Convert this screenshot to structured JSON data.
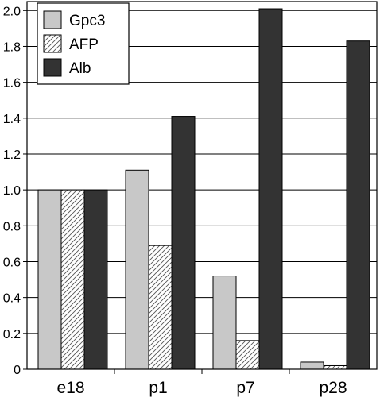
{
  "chart_data": {
    "type": "bar",
    "title": "",
    "xlabel": "",
    "ylabel": "",
    "categories": [
      "e18",
      "p1",
      "p7",
      "p28"
    ],
    "ylim": [
      0,
      2.05
    ],
    "yticks": [
      0,
      0.2,
      0.4,
      0.6,
      0.8,
      1.0,
      1.2,
      1.4,
      1.6,
      1.8,
      2.0
    ],
    "ytick_labels": [
      "0",
      "0.2",
      "0.4",
      "0.6",
      "0.8",
      "1.0",
      "1.2",
      "1.4",
      "1.6",
      "1.8",
      "2.0"
    ],
    "grid": "horizontal",
    "legend_position": "top-left",
    "series": [
      {
        "name": "Gpc3",
        "values": [
          1.0,
          1.11,
          0.52,
          0.04
        ],
        "color": "#c8c8c8",
        "pattern": "solid"
      },
      {
        "name": "AFP",
        "values": [
          1.0,
          0.69,
          0.16,
          0.02
        ],
        "color": "#ffffff",
        "pattern": "hatch"
      },
      {
        "name": "Alb",
        "values": [
          1.0,
          1.41,
          2.01,
          1.83
        ],
        "color": "#333333",
        "pattern": "solid"
      }
    ]
  }
}
